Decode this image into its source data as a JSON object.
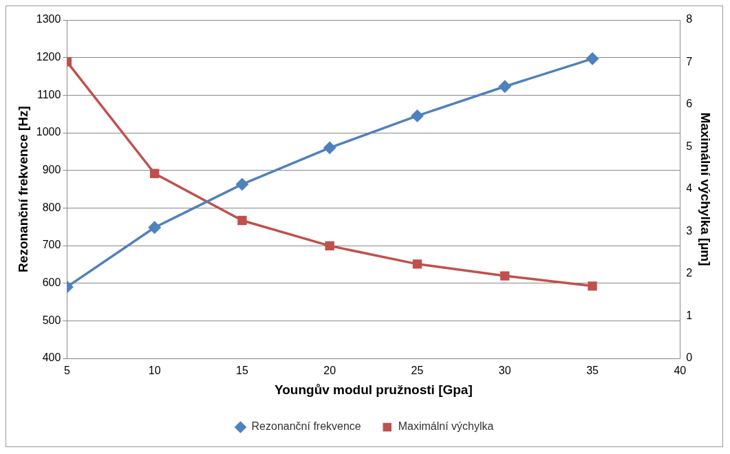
{
  "chart_data": {
    "type": "line",
    "xlabel": "Youngův modul pružnosti [Gpa]",
    "ylabel": "Rezonanční frekvence [Hz]",
    "y2label": "Maximální výchylka [µm]",
    "x": [
      5,
      10,
      15,
      20,
      25,
      30,
      35
    ],
    "xlim": [
      5,
      40
    ],
    "xticks": [
      5,
      10,
      15,
      20,
      25,
      30,
      35,
      40
    ],
    "ylim": [
      400,
      1300
    ],
    "yticks": [
      400,
      500,
      600,
      700,
      800,
      900,
      1000,
      1100,
      1200,
      1300
    ],
    "y2lim": [
      0,
      8
    ],
    "y2ticks": [
      0,
      1,
      2,
      3,
      4,
      5,
      6,
      7,
      8
    ],
    "grid": "y",
    "legend": "bottom",
    "line_style": "solid",
    "series": [
      {
        "name": "Rezonanční frekvence",
        "color": "#4f81bd",
        "marker": "diamond",
        "values": [
          590,
          748,
          863,
          960,
          1045,
          1123,
          1197
        ]
      },
      {
        "name": "Maximální výchylka",
        "color": "#c0504d",
        "marker": "square",
        "axis": "y2",
        "values": [
          7.01,
          4.37,
          3.26,
          2.66,
          2.23,
          1.95,
          1.71
        ]
      }
    ]
  }
}
